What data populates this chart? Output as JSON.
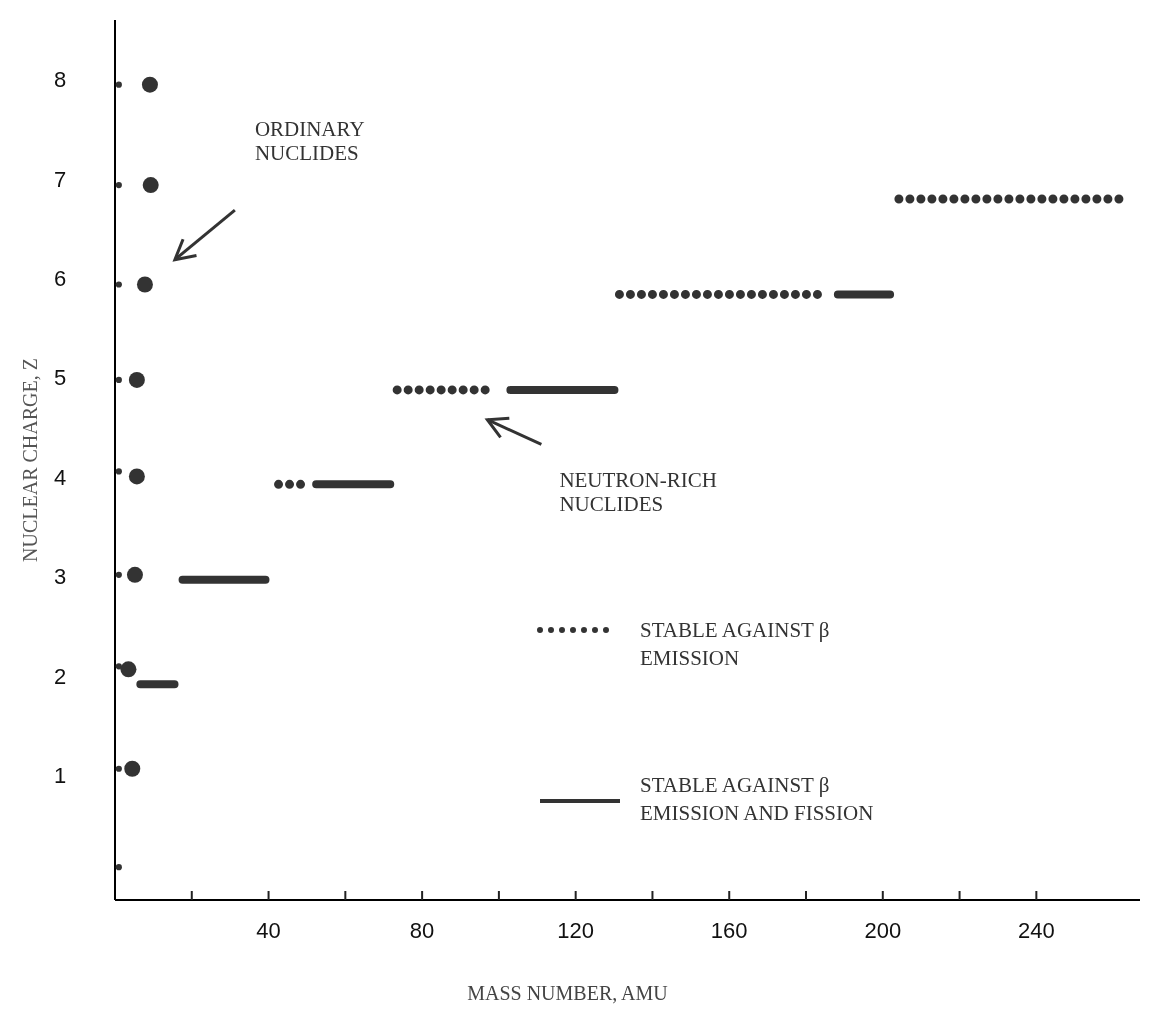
{
  "chart_data": {
    "type": "line",
    "xlabel": "MASS NUMBER, AMU",
    "ylabel": "NUCLEAR CHARGE, Z",
    "xlim": [
      0,
      267
    ],
    "ylim": [
      -0.25,
      8.6
    ],
    "xticks": [
      {
        "value": 20,
        "label": null
      },
      40,
      {
        "value": 60,
        "label": null
      },
      80,
      {
        "value": 100,
        "label": null
      },
      120,
      {
        "value": 140,
        "label": null
      },
      160,
      {
        "value": 180,
        "label": null
      },
      200,
      {
        "value": 220,
        "label": null
      },
      240
    ],
    "yticks": [
      1,
      2,
      3,
      4,
      5,
      6,
      7,
      8
    ],
    "legend": "bottom right",
    "grid": false,
    "series": [
      {
        "type": "bubble",
        "color": "#333333",
        "x": [
          1,
          1,
          1,
          1,
          1,
          1,
          1,
          1,
          1,
          4.5,
          3.5,
          5.2,
          5.7,
          5.7,
          7.8,
          9.3,
          9.1
        ],
        "values": [
          0.08,
          1.07,
          2.1,
          3.02,
          4.06,
          4.98,
          5.94,
          6.94,
          7.95,
          1.07,
          2.07,
          3.02,
          4.01,
          4.98,
          5.94,
          6.94,
          7.95
        ],
        "sizes": [
          0.15,
          0.15,
          0.15,
          0.15,
          0.15,
          0.15,
          0.15,
          0.15,
          0.15,
          1,
          1,
          1,
          1,
          1,
          1,
          1,
          1
        ]
      },
      {
        "name": "STABLE AGAINST β EMISSION",
        "color": "#333333",
        "line_style": "dotted",
        "x": [
          42.6,
          48.5,
          null,
          73.5,
          98.7,
          null,
          131.4,
          184.4,
          null,
          204.2,
          263.2
        ],
        "values": [
          3.93,
          3.93,
          null,
          4.88,
          4.88,
          null,
          5.84,
          5.84,
          null,
          6.8,
          6.8
        ]
      },
      {
        "name": "STABLE AGAINST β EMISSION AND FISSION",
        "color": "#333333",
        "line_style": "solid",
        "x": [
          6.6,
          15.5,
          null,
          17.6,
          39.2,
          null,
          52.4,
          71.7,
          null,
          103,
          130.1,
          null,
          188.3,
          201.9
        ],
        "values": [
          1.92,
          1.92,
          null,
          2.97,
          2.97,
          null,
          3.93,
          3.93,
          null,
          4.88,
          4.88,
          null,
          5.84,
          5.84
        ]
      }
    ],
    "annotations": [
      "ORDINARY NUCLIDES",
      "NEUTRON-RICH NUCLIDES"
    ]
  }
}
